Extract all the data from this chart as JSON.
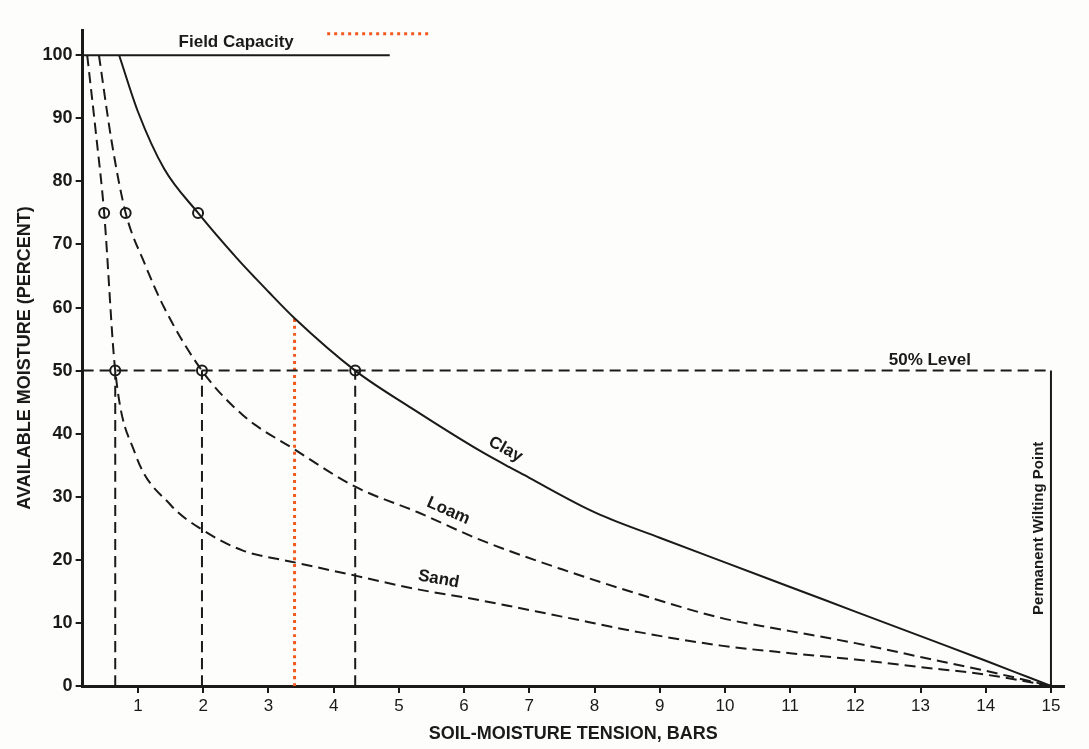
{
  "chart_data": {
    "type": "line",
    "xlabel": "SOIL-MOISTURE TENSION, BARS",
    "ylabel": "AVAILABLE MOISTURE (PERCENT)",
    "xlim": [
      0.15,
      15.2
    ],
    "xticks": [
      1,
      2,
      3,
      4,
      5,
      6,
      7,
      8,
      9,
      10,
      11,
      12,
      13,
      14,
      15
    ],
    "ylim": [
      0,
      104
    ],
    "yticks": [
      0,
      10,
      20,
      30,
      40,
      50,
      60,
      70,
      80,
      90,
      100
    ],
    "legend": false,
    "series": [
      {
        "name": "Clay",
        "color": "#1a1a1a",
        "line_style": "solid",
        "x": [
          0.71,
          1.0,
          1.4,
          1.92,
          2.5,
          3.0,
          3.4,
          4.33,
          5.2,
          6.24,
          7.0,
          8.03,
          9.0,
          10.0,
          11.0,
          12.0,
          13.0,
          14.0,
          15.0
        ],
        "values": [
          100,
          91,
          82,
          75,
          68,
          62.5,
          58.3,
          50,
          44,
          37.3,
          33,
          27.4,
          23.5,
          19.6,
          15.7,
          11.8,
          7.9,
          4,
          0
        ]
      },
      {
        "name": "Loam",
        "color": "#1a1a1a",
        "line_style": "dashed",
        "x": [
          0.4,
          0.6,
          0.81,
          1.1,
          1.4,
          1.98,
          2.6,
          3.4,
          4.33,
          5.3,
          6.24,
          7.5,
          8.7,
          9.94,
          11.0,
          12.0,
          13.0,
          14.0,
          15.0
        ],
        "values": [
          100,
          86,
          75,
          67,
          60,
          50,
          43,
          37.5,
          31.6,
          27.5,
          23.2,
          18.5,
          14.5,
          10.8,
          8.7,
          6.8,
          4.6,
          2.4,
          0
        ]
      },
      {
        "name": "Sand",
        "color": "#1a1a1a",
        "line_style": "dashed",
        "x": [
          0.22,
          0.35,
          0.48,
          0.65,
          0.95,
          1.5,
          1.98,
          2.6,
          3.4,
          4.33,
          5.2,
          6.24,
          7.5,
          8.7,
          9.94,
          11.0,
          12.0,
          13.0,
          14.0,
          15.0
        ],
        "values": [
          100,
          88,
          75,
          50,
          37,
          28.7,
          24.8,
          21.5,
          19.6,
          17.5,
          15.5,
          13.6,
          11,
          8.5,
          6.4,
          5.2,
          4.2,
          3,
          1.8,
          0
        ]
      },
      {
        "color": "#1a1a1a",
        "line_style": "dashed",
        "x": [
          0.65,
          0.65
        ],
        "values": [
          0,
          50
        ]
      },
      {
        "color": "#1a1a1a",
        "line_style": "dashed",
        "x": [
          1.98,
          1.98
        ],
        "values": [
          0,
          50
        ]
      },
      {
        "color": "#1a1a1a",
        "line_style": "dashed",
        "x": [
          4.33,
          4.33
        ],
        "values": [
          0,
          50
        ]
      },
      {
        "color": "#f05a1e",
        "line_style": "dotted",
        "x": [
          3.4,
          3.4
        ],
        "values": [
          0,
          58.3
        ]
      },
      {
        "color": "#f05a1e",
        "line_style": "dotted",
        "x": [
          3.9,
          5.48
        ],
        "values": [
          103.4,
          103.4
        ]
      },
      {
        "name": "Field Capacity",
        "color": "#1a1a1a",
        "line_style": "solid",
        "x": [
          0.15,
          4.86
        ],
        "values": [
          100,
          100
        ]
      },
      {
        "name": "Permanent Wilting Point",
        "color": "#1a1a1a",
        "line_style": "solid",
        "x": [
          15,
          15
        ],
        "values": [
          0,
          50
        ]
      },
      {
        "type": "scatter",
        "marker": "circle",
        "color": "#1a1a1a",
        "x": [
          0.48,
          0.81,
          1.92,
          0.65,
          1.98,
          4.33
        ],
        "values": [
          75,
          75,
          75,
          50,
          50,
          50
        ]
      }
    ],
    "ref_lines": [
      {
        "axis": "y",
        "value": 50,
        "label": "50% Level",
        "line_style": "dashed",
        "color": "#1a1a1a"
      }
    ]
  }
}
